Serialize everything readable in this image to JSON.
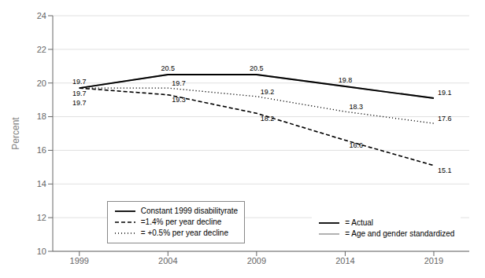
{
  "chart_data": {
    "type": "line",
    "ylabel": "Percent",
    "x": [
      1999,
      2004,
      2009,
      2014,
      2019
    ],
    "xlim": [
      1997.5,
      2021
    ],
    "xticks": [
      1999,
      2004,
      2009,
      2014,
      2019
    ],
    "ylim": [
      10,
      24
    ],
    "yticks": [
      10,
      12,
      14,
      16,
      18,
      20,
      22,
      24
    ],
    "grid": true,
    "series": [
      {
        "color": "#aaaaaa",
        "line_style": "solid",
        "values": [
          19.7,
          20.5,
          20.5,
          19.8,
          19.1
        ]
      },
      {
        "color": "#aaaaaa",
        "line_style": "dashed",
        "values": [
          19.7,
          19.3,
          18.2,
          16.6,
          15.1
        ]
      },
      {
        "color": "#aaaaaa",
        "line_style": "dotted",
        "values": [
          19.7,
          19.7,
          19.2,
          18.3,
          17.6
        ]
      },
      {
        "color": "#000000",
        "line_style": "solid",
        "values": [
          19.7,
          20.5,
          20.5,
          19.8,
          19.1
        ],
        "data_labels": true
      },
      {
        "color": "#000000",
        "line_style": "dashed",
        "values": [
          19.7,
          19.3,
          18.2,
          16.6,
          15.1
        ],
        "data_labels": true
      },
      {
        "color": "#000000",
        "line_style": "dotted",
        "values": [
          19.7,
          19.7,
          19.2,
          18.3,
          17.6
        ],
        "data_labels": true
      }
    ],
    "legend_groups": [
      {
        "legend": "lower left",
        "entries": [
          {
            "name": "Constant 1999 disabilityrate",
            "color": "#000000",
            "line_style": "solid"
          },
          {
            "name": "=1.4% per year decline",
            "color": "#000000",
            "line_style": "dashed"
          },
          {
            "name": "= +0.5% per year decline",
            "color": "#000000",
            "line_style": "dotted"
          }
        ]
      },
      {
        "legend": "lower right",
        "entries": [
          {
            "name": "= Actual",
            "color": "#000000",
            "line_style": "solid"
          },
          {
            "name": "= Age and gender standardized",
            "color": "#aaaaaa",
            "line_style": "solid"
          }
        ]
      }
    ]
  }
}
